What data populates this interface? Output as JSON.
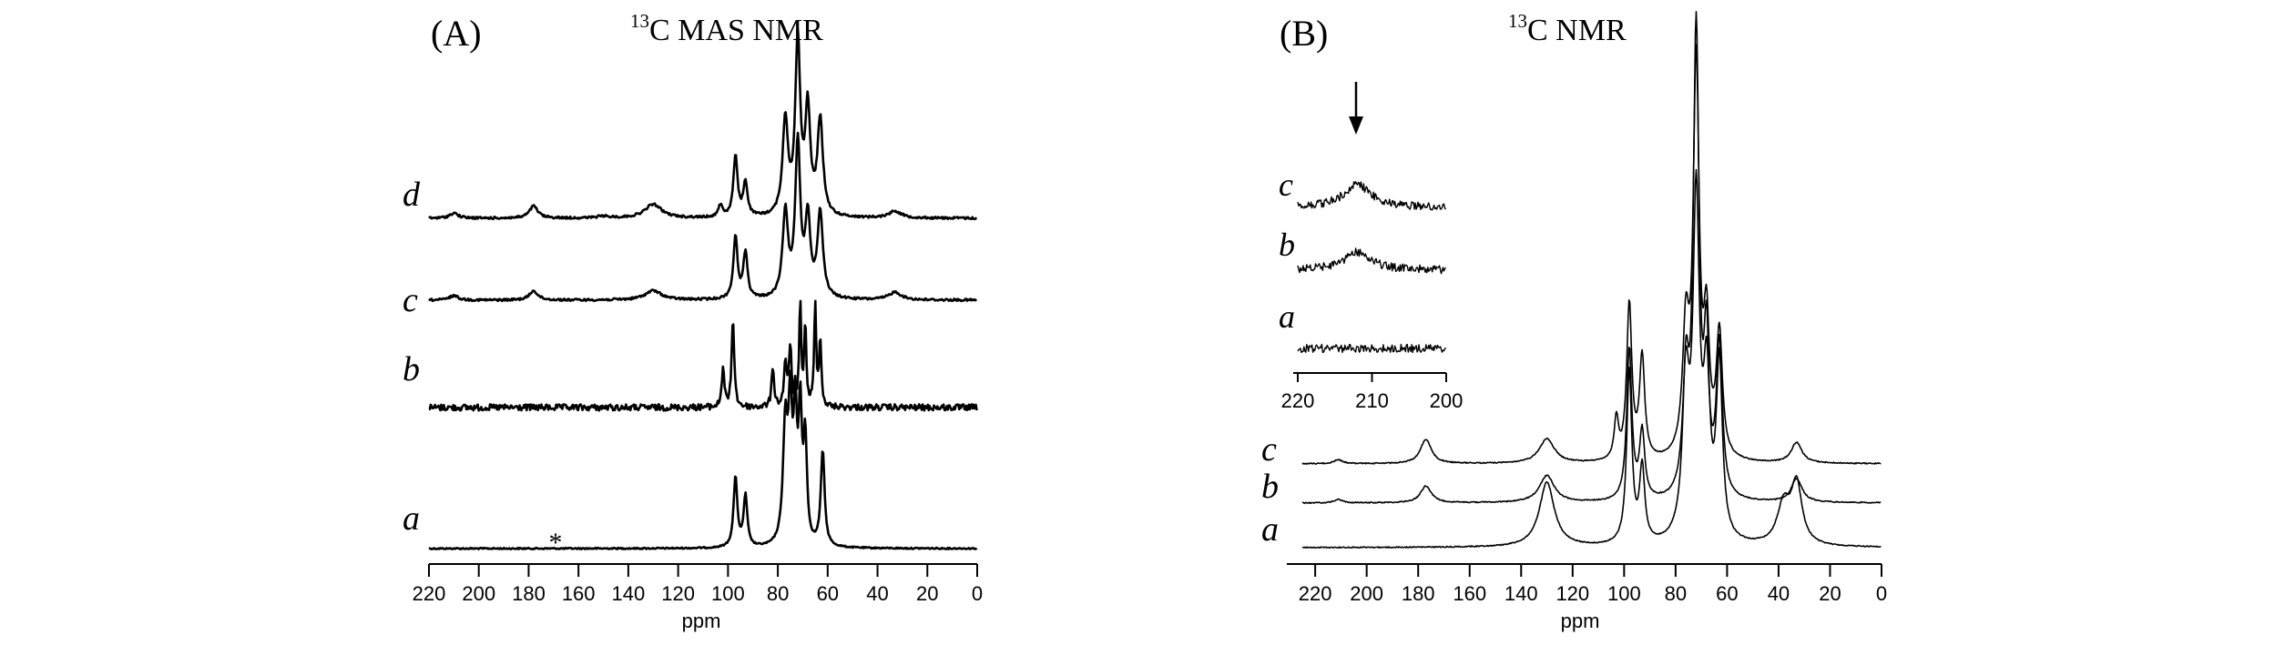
{
  "panelA": {
    "label": "(A)",
    "title_sup": "13",
    "title": "C MAS NMR",
    "xlabel": "ppm",
    "ticks": [
      220,
      200,
      180,
      160,
      140,
      120,
      100,
      80,
      60,
      40,
      20,
      0
    ],
    "asterisk": "*"
  },
  "panelB": {
    "label": "(B)",
    "title_sup": "13",
    "title": "C NMR",
    "xlabel": "ppm",
    "ticks": [
      220,
      200,
      180,
      160,
      140,
      120,
      100,
      80,
      60,
      40,
      20,
      0
    ],
    "inset_ticks": [
      220,
      210,
      200
    ]
  },
  "chart_data": [
    {
      "type": "line",
      "title": "13C MAS NMR",
      "xlabel": "ppm",
      "xlim": [
        220,
        0
      ],
      "axis_reversed": true,
      "grid": false,
      "series": [
        {
          "name": "a",
          "peaks_ppm": [
            97,
            93,
            77,
            75,
            73,
            71,
            62
          ],
          "noise": "low",
          "note_marker_ppm": 168
        },
        {
          "name": "b",
          "peaks_ppm": [
            102,
            98,
            82,
            77,
            75,
            71,
            69,
            65,
            63
          ],
          "noise": "high"
        },
        {
          "name": "c",
          "peaks_ppm": [
            210,
            178,
            130,
            97,
            93,
            75,
            72,
            63,
            33
          ],
          "noise": "medium"
        },
        {
          "name": "d",
          "peaks_ppm": [
            210,
            178,
            130,
            103,
            97,
            93,
            75,
            72,
            63,
            33
          ],
          "noise": "medium"
        }
      ]
    },
    {
      "type": "line",
      "title": "13C NMR",
      "xlabel": "ppm",
      "xlim": [
        230,
        0
      ],
      "axis_reversed": true,
      "grid": false,
      "series": [
        {
          "name": "a",
          "peaks_ppm": [
            130,
            98,
            93,
            76,
            72,
            63,
            33
          ]
        },
        {
          "name": "b",
          "peaks_ppm": [
            211,
            177,
            130,
            98,
            93,
            76,
            72,
            63,
            33
          ]
        },
        {
          "name": "c",
          "peaks_ppm": [
            211,
            177,
            130,
            103,
            98,
            93,
            76,
            72,
            63,
            33
          ]
        }
      ],
      "inset": {
        "xlim": [
          220,
          200
        ],
        "arrow_ppm": 212,
        "series": [
          {
            "name": "a",
            "peak_ppm": null
          },
          {
            "name": "b",
            "peak_ppm": 212
          },
          {
            "name": "c",
            "peak_ppm": 212
          }
        ]
      }
    }
  ]
}
